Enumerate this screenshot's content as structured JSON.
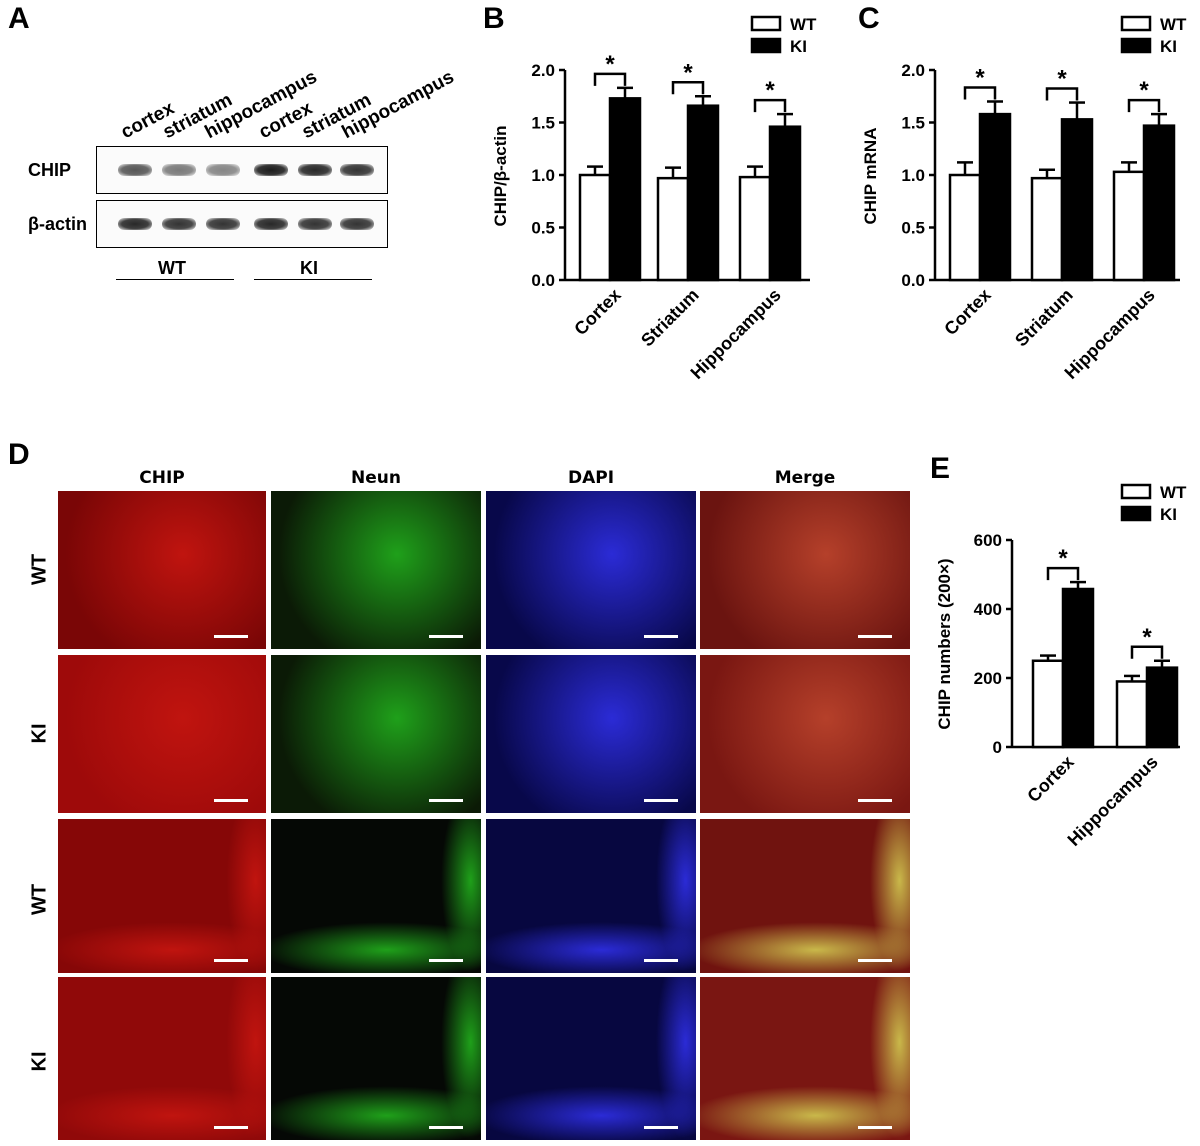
{
  "panels": [
    "A",
    "B",
    "C",
    "D",
    "E"
  ],
  "western_blot": {
    "lane_labels": [
      "cortex",
      "striatum",
      "hippocampus",
      "cortex",
      "striatum",
      "hippocampus"
    ],
    "rows": [
      {
        "label": "CHIP",
        "band_intensity": [
          0.7,
          0.55,
          0.5,
          0.95,
          0.9,
          0.85
        ]
      },
      {
        "label": "β-actin",
        "band_intensity": [
          0.9,
          0.85,
          0.85,
          0.9,
          0.85,
          0.85
        ]
      }
    ],
    "groups": [
      "WT",
      "KI"
    ]
  },
  "chart_data": [
    {
      "panel": "B",
      "type": "bar",
      "categories": [
        "Cortex",
        "Striatum",
        "Hippocampus"
      ],
      "series": [
        {
          "name": "WT",
          "values": [
            1.0,
            0.97,
            0.98
          ],
          "errors": [
            0.08,
            0.1,
            0.1
          ],
          "fill": "#ffffff"
        },
        {
          "name": "KI",
          "values": [
            1.73,
            1.66,
            1.46
          ],
          "errors": [
            0.1,
            0.09,
            0.12
          ],
          "fill": "#000000"
        }
      ],
      "ylabel": "CHIP/β-actin",
      "ylim": [
        0,
        2.0
      ],
      "yticks": [
        "0.0",
        "0.5",
        "1.0",
        "1.5",
        "2.0"
      ],
      "significance": [
        "*",
        "*",
        "*"
      ],
      "legend": "top-right"
    },
    {
      "panel": "C",
      "type": "bar",
      "categories": [
        "Cortex",
        "Striatum",
        "Hippocampus"
      ],
      "series": [
        {
          "name": "WT",
          "values": [
            1.0,
            0.97,
            1.03
          ],
          "errors": [
            0.12,
            0.08,
            0.09
          ],
          "fill": "#ffffff"
        },
        {
          "name": "KI",
          "values": [
            1.58,
            1.53,
            1.47
          ],
          "errors": [
            0.12,
            0.16,
            0.11
          ],
          "fill": "#000000"
        }
      ],
      "ylabel": "CHIP mRNA",
      "ylim": [
        0,
        2.0
      ],
      "yticks": [
        "0.0",
        "0.5",
        "1.0",
        "1.5",
        "2.0"
      ],
      "significance": [
        "*",
        "*",
        "*"
      ],
      "legend": "top-right"
    },
    {
      "panel": "E",
      "type": "bar",
      "categories": [
        "Cortex",
        "Hippocampus"
      ],
      "series": [
        {
          "name": "WT",
          "values": [
            250,
            190
          ],
          "errors": [
            15,
            16
          ],
          "fill": "#ffffff"
        },
        {
          "name": "KI",
          "values": [
            458,
            230
          ],
          "errors": [
            20,
            20
          ],
          "fill": "#000000"
        }
      ],
      "ylabel": "CHIP numbers (200×)",
      "ylim": [
        0,
        600
      ],
      "yticks": [
        "0",
        "200",
        "400",
        "600"
      ],
      "significance": [
        "*",
        "*"
      ],
      "legend": "top-right"
    }
  ],
  "microscopy": {
    "columns": [
      "CHIP",
      "Neun",
      "DAPI",
      "Merge"
    ],
    "rows": [
      "WT",
      "KI",
      "WT",
      "KI"
    ],
    "channel_colors": {
      "CHIP": "#c0140f",
      "Neun": "#1fa01a",
      "DAPI": "#2b2bd6",
      "Merge": "#b5402a"
    }
  }
}
